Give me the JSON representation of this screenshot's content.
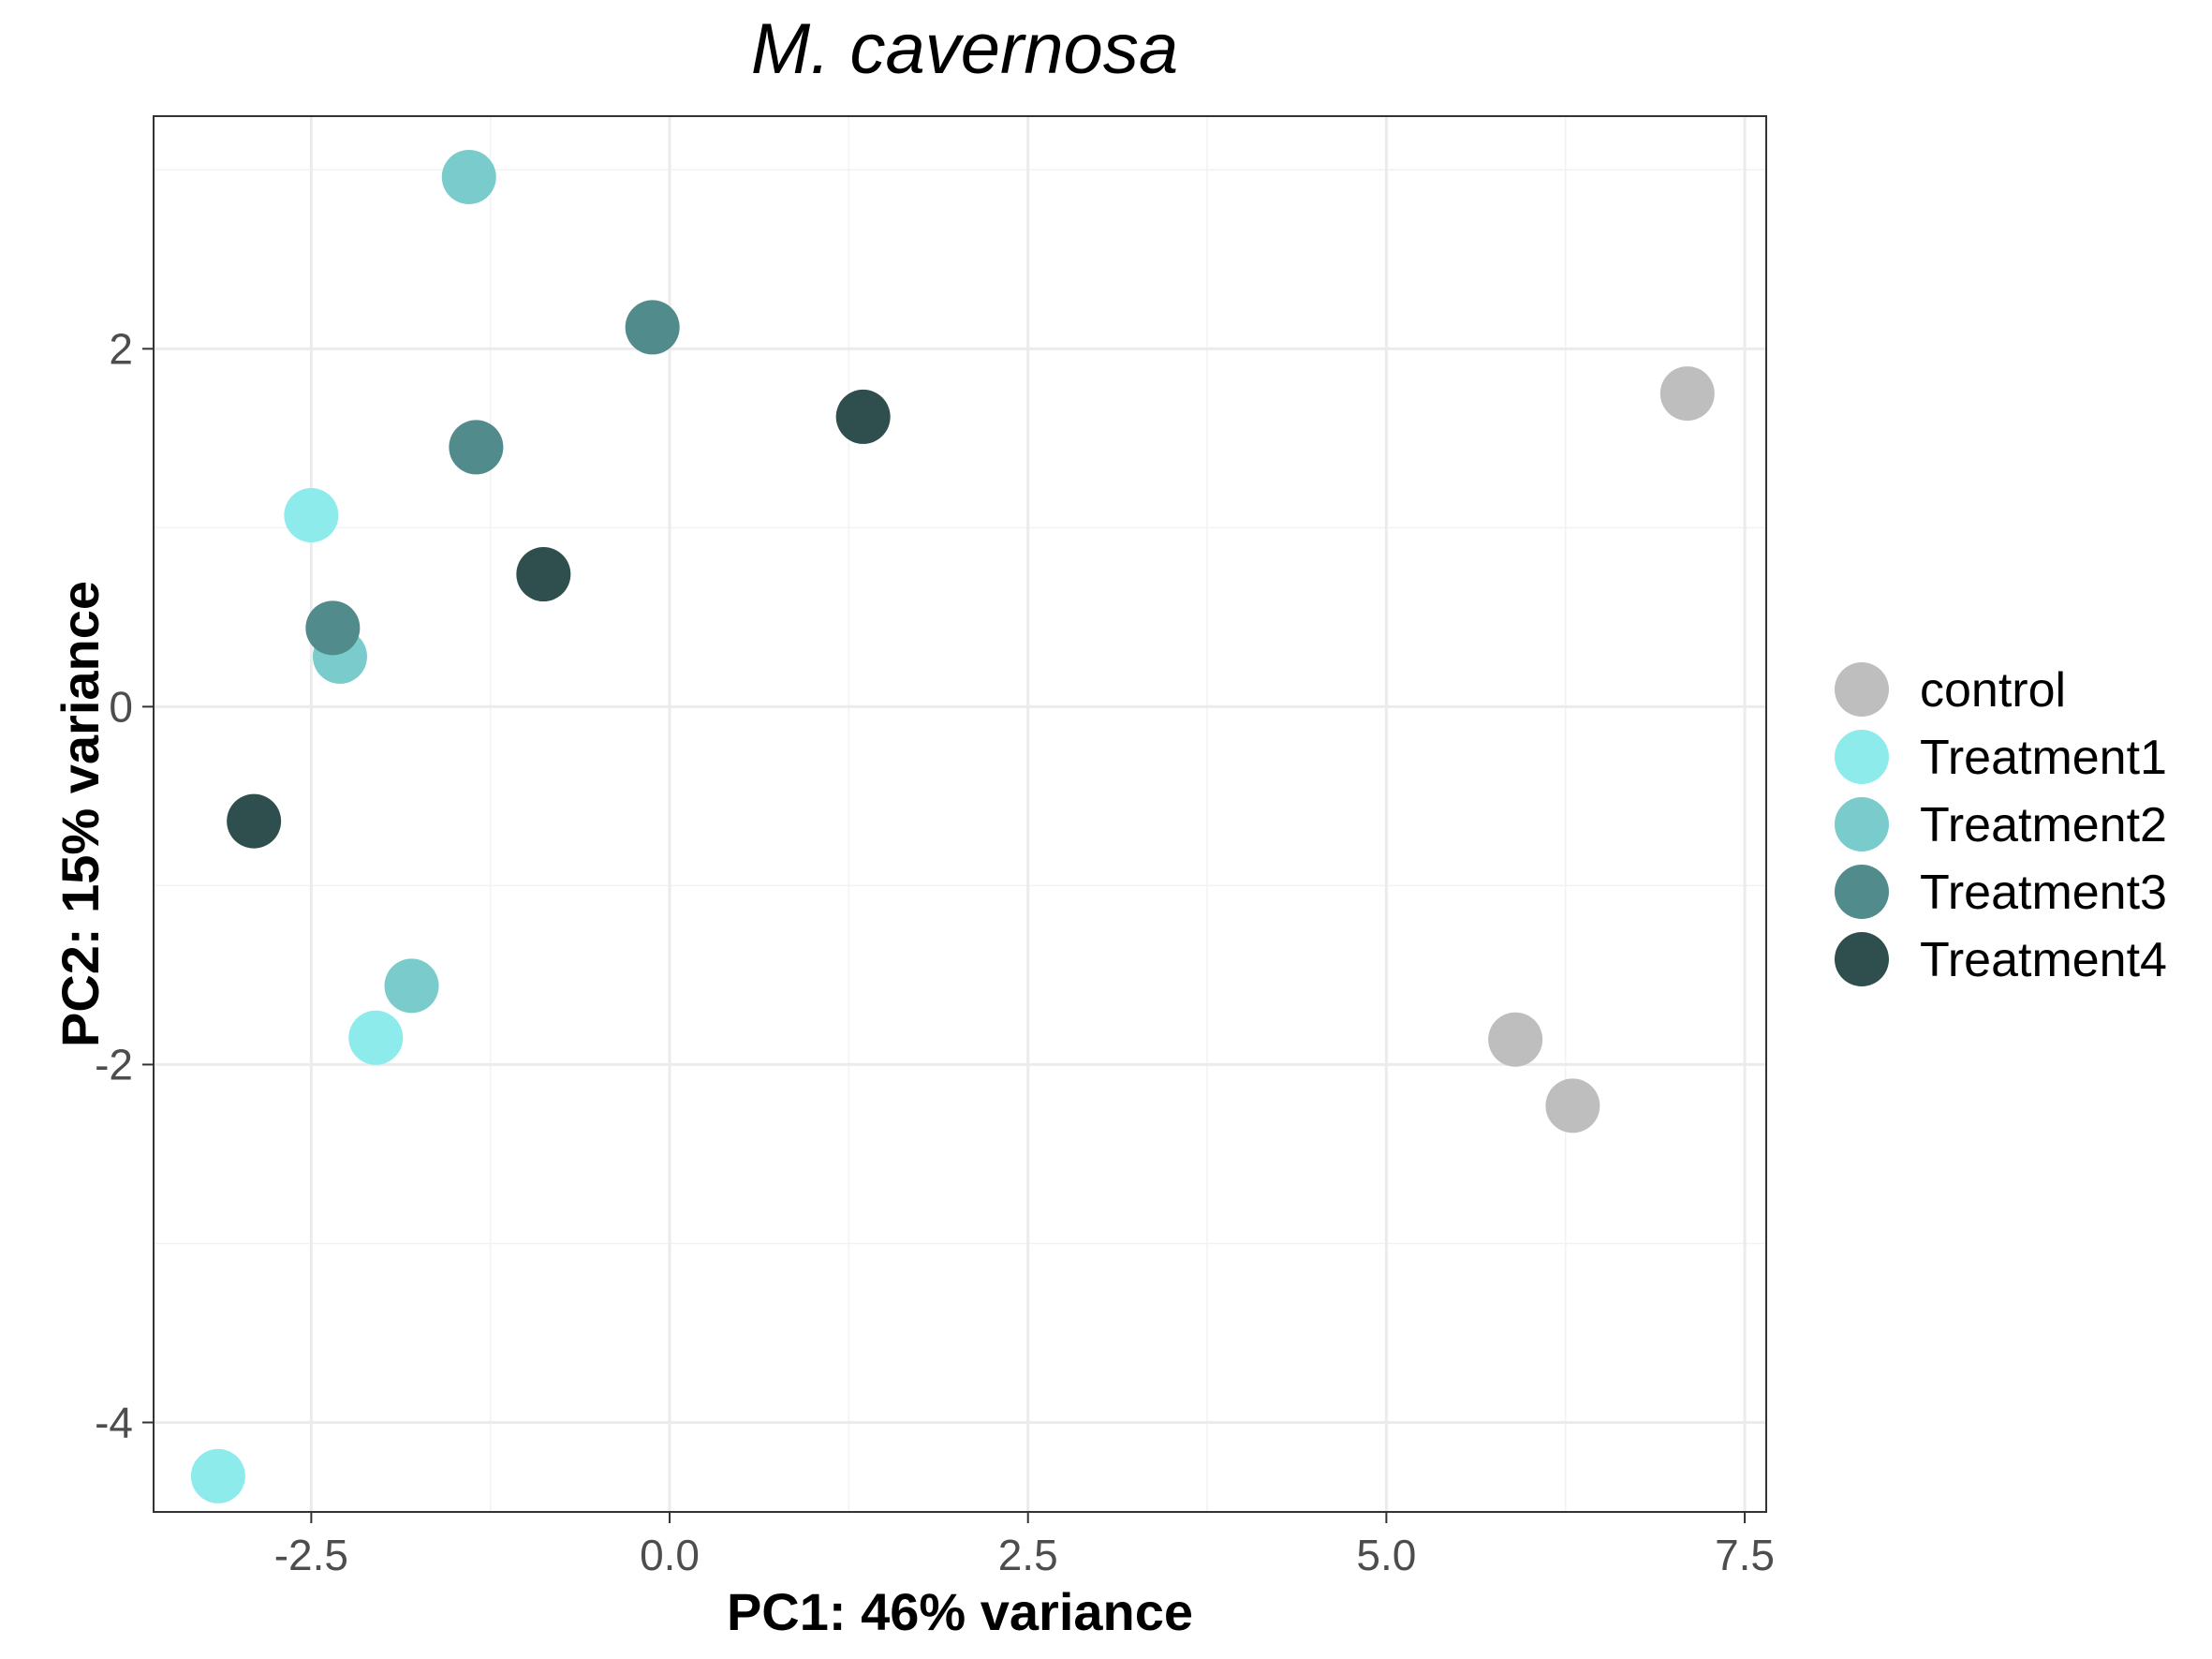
{
  "chart_data": {
    "type": "scatter",
    "title": "M. cavernosa",
    "xlabel": "PC1: 46% variance",
    "ylabel": "PC2: 15% variance",
    "xlim": [
      -3.6,
      7.65
    ],
    "ylim": [
      -4.5,
      3.3
    ],
    "xticks": [
      -2.5,
      0.0,
      2.5,
      5.0,
      7.5
    ],
    "xtick_labels": [
      "-2.5",
      "0.0",
      "2.5",
      "5.0",
      "7.5"
    ],
    "yticks": [
      -4,
      -2,
      0,
      2
    ],
    "ytick_labels": [
      "-4",
      "-2",
      "0",
      "2"
    ],
    "grid": true,
    "legend_position": "right",
    "series": [
      {
        "name": "control",
        "color": "#bebebe",
        "points": [
          [
            7.1,
            1.75
          ],
          [
            5.9,
            -1.86
          ],
          [
            6.3,
            -2.23
          ]
        ]
      },
      {
        "name": "Treatment1",
        "color": "#8eebeb",
        "points": [
          [
            -2.5,
            1.07
          ],
          [
            -2.05,
            -1.85
          ],
          [
            -3.15,
            -4.3
          ]
        ]
      },
      {
        "name": "Treatment2",
        "color": "#7acccc",
        "points": [
          [
            -1.4,
            2.96
          ],
          [
            -2.3,
            0.28
          ],
          [
            -1.8,
            -1.56
          ]
        ]
      },
      {
        "name": "Treatment3",
        "color": "#528b8b",
        "points": [
          [
            -0.12,
            2.12
          ],
          [
            -1.35,
            1.45
          ],
          [
            -2.35,
            0.44
          ]
        ]
      },
      {
        "name": "Treatment4",
        "color": "#2f4f4f",
        "points": [
          [
            1.35,
            1.62
          ],
          [
            -0.88,
            0.74
          ],
          [
            -2.9,
            -0.64
          ]
        ]
      }
    ]
  }
}
